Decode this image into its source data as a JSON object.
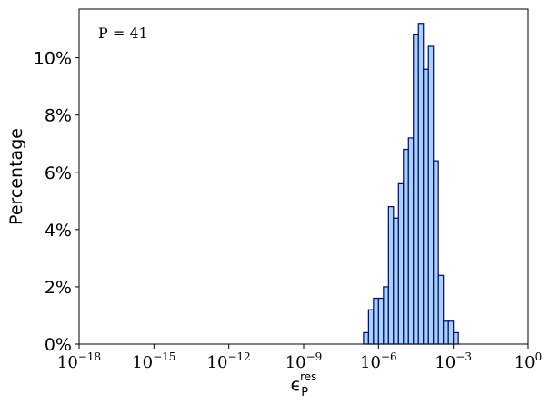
{
  "chart_data": {
    "type": "bar",
    "annotation": "P = 41",
    "ylabel": "Percentage",
    "xlabel": {
      "base": "ϵ",
      "sub": "P",
      "sup": "res"
    },
    "x_scale": "log10",
    "xlim_exponent": [
      -18,
      0
    ],
    "ylim_percent": [
      0,
      11.7
    ],
    "x_ticks": [
      {
        "base": "10",
        "exp": "−18",
        "value": -18
      },
      {
        "base": "10",
        "exp": "−15",
        "value": -15
      },
      {
        "base": "10",
        "exp": "−12",
        "value": -12
      },
      {
        "base": "10",
        "exp": "−9",
        "value": -9
      },
      {
        "base": "10",
        "exp": "−6",
        "value": -6
      },
      {
        "base": "10",
        "exp": "−3",
        "value": -3
      },
      {
        "base": "10",
        "exp": "0",
        "value": 0
      }
    ],
    "y_ticks": [
      {
        "label": "0%",
        "value": 0
      },
      {
        "label": "2%",
        "value": 2
      },
      {
        "label": "4%",
        "value": 4
      },
      {
        "label": "6%",
        "value": 6
      },
      {
        "label": "8%",
        "value": 8
      },
      {
        "label": "10%",
        "value": 10
      }
    ],
    "bin_width_log10": 0.2,
    "bins_log10_left_edges": [
      -6.6,
      -6.4,
      -6.2,
      -6.0,
      -5.8,
      -5.6,
      -5.4,
      -5.2,
      -5.0,
      -4.8,
      -4.6,
      -4.4,
      -4.2,
      -4.0,
      -3.8,
      -3.6,
      -3.4,
      -3.2,
      -3.0,
      -2.8,
      -2.6
    ],
    "values_percent": [
      0.4,
      1.2,
      1.6,
      1.6,
      2.0,
      4.8,
      4.4,
      5.6,
      6.8,
      7.2,
      10.8,
      11.2,
      9.6,
      10.4,
      6.4,
      2.4,
      0.8,
      0.8,
      0.4,
      0.0,
      0.0
    ],
    "colors": {
      "fill": "#a6d5f2",
      "edge": "#00008b"
    }
  }
}
